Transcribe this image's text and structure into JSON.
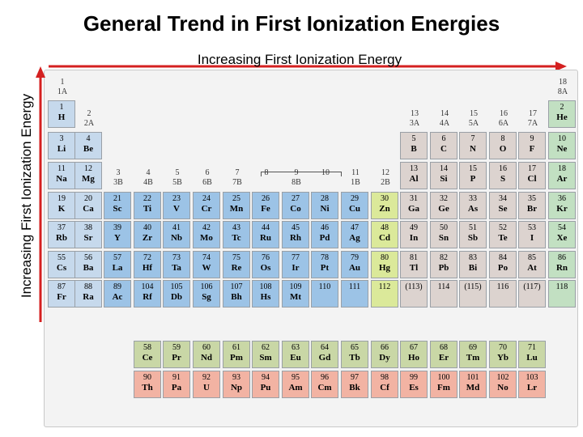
{
  "title": "General Trend in First Ionization Energies",
  "horizontal_label": "Increasing First Ionization Energy",
  "vertical_label": "Increasing First Ionization Energy",
  "colors": {
    "s_block": "#c6d9ec",
    "transition": "#9cc3e6",
    "zn_group": "#dbe99a",
    "p_block": "#dcd3cf",
    "noble": "#c2e0c2",
    "lanthanide": "#c9d7a6",
    "actinide": "#f2b3a3",
    "arrow": "#d42020"
  },
  "group_labels": [
    {
      "col": 1,
      "a": "1",
      "b": "1A"
    },
    {
      "col": 2,
      "a": "2",
      "b": "2A"
    },
    {
      "col": 3,
      "a": "3",
      "b": "3B"
    },
    {
      "col": 4,
      "a": "4",
      "b": "4B"
    },
    {
      "col": 5,
      "a": "5",
      "b": "5B"
    },
    {
      "col": 6,
      "a": "6",
      "b": "6B"
    },
    {
      "col": 7,
      "a": "7",
      "b": "7B"
    },
    {
      "col": 8,
      "a": "8",
      "b": ""
    },
    {
      "col": 9,
      "a": "9",
      "b": "8B"
    },
    {
      "col": 10,
      "a": "10",
      "b": ""
    },
    {
      "col": 11,
      "a": "11",
      "b": "1B"
    },
    {
      "col": 12,
      "a": "12",
      "b": "2B"
    },
    {
      "col": 13,
      "a": "13",
      "b": "3A"
    },
    {
      "col": 14,
      "a": "14",
      "b": "4A"
    },
    {
      "col": 15,
      "a": "15",
      "b": "5A"
    },
    {
      "col": 16,
      "a": "16",
      "b": "6A"
    },
    {
      "col": 17,
      "a": "17",
      "b": "7A"
    },
    {
      "col": 18,
      "a": "18",
      "b": "8A"
    }
  ],
  "elements": [
    {
      "n": "1",
      "s": "H",
      "r": 1,
      "c": 1,
      "b": "s"
    },
    {
      "n": "2",
      "s": "He",
      "r": 1,
      "c": 18,
      "b": "noble"
    },
    {
      "n": "3",
      "s": "Li",
      "r": 2,
      "c": 1,
      "b": "s"
    },
    {
      "n": "4",
      "s": "Be",
      "r": 2,
      "c": 2,
      "b": "s"
    },
    {
      "n": "5",
      "s": "B",
      "r": 2,
      "c": 13,
      "b": "p"
    },
    {
      "n": "6",
      "s": "C",
      "r": 2,
      "c": 14,
      "b": "p"
    },
    {
      "n": "7",
      "s": "N",
      "r": 2,
      "c": 15,
      "b": "p"
    },
    {
      "n": "8",
      "s": "O",
      "r": 2,
      "c": 16,
      "b": "p"
    },
    {
      "n": "9",
      "s": "F",
      "r": 2,
      "c": 17,
      "b": "p"
    },
    {
      "n": "10",
      "s": "Ne",
      "r": 2,
      "c": 18,
      "b": "noble"
    },
    {
      "n": "11",
      "s": "Na",
      "r": 3,
      "c": 1,
      "b": "s"
    },
    {
      "n": "12",
      "s": "Mg",
      "r": 3,
      "c": 2,
      "b": "s"
    },
    {
      "n": "13",
      "s": "Al",
      "r": 3,
      "c": 13,
      "b": "p"
    },
    {
      "n": "14",
      "s": "Si",
      "r": 3,
      "c": 14,
      "b": "p"
    },
    {
      "n": "15",
      "s": "P",
      "r": 3,
      "c": 15,
      "b": "p"
    },
    {
      "n": "16",
      "s": "S",
      "r": 3,
      "c": 16,
      "b": "p"
    },
    {
      "n": "17",
      "s": "Cl",
      "r": 3,
      "c": 17,
      "b": "p"
    },
    {
      "n": "18",
      "s": "Ar",
      "r": 3,
      "c": 18,
      "b": "noble"
    },
    {
      "n": "19",
      "s": "K",
      "r": 4,
      "c": 1,
      "b": "s"
    },
    {
      "n": "20",
      "s": "Ca",
      "r": 4,
      "c": 2,
      "b": "s"
    },
    {
      "n": "21",
      "s": "Sc",
      "r": 4,
      "c": 3,
      "b": "t"
    },
    {
      "n": "22",
      "s": "Ti",
      "r": 4,
      "c": 4,
      "b": "t"
    },
    {
      "n": "23",
      "s": "V",
      "r": 4,
      "c": 5,
      "b": "t"
    },
    {
      "n": "24",
      "s": "Cr",
      "r": 4,
      "c": 6,
      "b": "t"
    },
    {
      "n": "25",
      "s": "Mn",
      "r": 4,
      "c": 7,
      "b": "t"
    },
    {
      "n": "26",
      "s": "Fe",
      "r": 4,
      "c": 8,
      "b": "t"
    },
    {
      "n": "27",
      "s": "Co",
      "r": 4,
      "c": 9,
      "b": "t"
    },
    {
      "n": "28",
      "s": "Ni",
      "r": 4,
      "c": 10,
      "b": "t"
    },
    {
      "n": "29",
      "s": "Cu",
      "r": 4,
      "c": 11,
      "b": "t"
    },
    {
      "n": "30",
      "s": "Zn",
      "r": 4,
      "c": 12,
      "b": "zn"
    },
    {
      "n": "31",
      "s": "Ga",
      "r": 4,
      "c": 13,
      "b": "p"
    },
    {
      "n": "32",
      "s": "Ge",
      "r": 4,
      "c": 14,
      "b": "p"
    },
    {
      "n": "33",
      "s": "As",
      "r": 4,
      "c": 15,
      "b": "p"
    },
    {
      "n": "34",
      "s": "Se",
      "r": 4,
      "c": 16,
      "b": "p"
    },
    {
      "n": "35",
      "s": "Br",
      "r": 4,
      "c": 17,
      "b": "p"
    },
    {
      "n": "36",
      "s": "Kr",
      "r": 4,
      "c": 18,
      "b": "noble"
    },
    {
      "n": "37",
      "s": "Rb",
      "r": 5,
      "c": 1,
      "b": "s"
    },
    {
      "n": "38",
      "s": "Sr",
      "r": 5,
      "c": 2,
      "b": "s"
    },
    {
      "n": "39",
      "s": "Y",
      "r": 5,
      "c": 3,
      "b": "t"
    },
    {
      "n": "40",
      "s": "Zr",
      "r": 5,
      "c": 4,
      "b": "t"
    },
    {
      "n": "41",
      "s": "Nb",
      "r": 5,
      "c": 5,
      "b": "t"
    },
    {
      "n": "42",
      "s": "Mo",
      "r": 5,
      "c": 6,
      "b": "t"
    },
    {
      "n": "43",
      "s": "Tc",
      "r": 5,
      "c": 7,
      "b": "t"
    },
    {
      "n": "44",
      "s": "Ru",
      "r": 5,
      "c": 8,
      "b": "t"
    },
    {
      "n": "45",
      "s": "Rh",
      "r": 5,
      "c": 9,
      "b": "t"
    },
    {
      "n": "46",
      "s": "Pd",
      "r": 5,
      "c": 10,
      "b": "t"
    },
    {
      "n": "47",
      "s": "Ag",
      "r": 5,
      "c": 11,
      "b": "t"
    },
    {
      "n": "48",
      "s": "Cd",
      "r": 5,
      "c": 12,
      "b": "zn"
    },
    {
      "n": "49",
      "s": "In",
      "r": 5,
      "c": 13,
      "b": "p"
    },
    {
      "n": "50",
      "s": "Sn",
      "r": 5,
      "c": 14,
      "b": "p"
    },
    {
      "n": "51",
      "s": "Sb",
      "r": 5,
      "c": 15,
      "b": "p"
    },
    {
      "n": "52",
      "s": "Te",
      "r": 5,
      "c": 16,
      "b": "p"
    },
    {
      "n": "53",
      "s": "I",
      "r": 5,
      "c": 17,
      "b": "p"
    },
    {
      "n": "54",
      "s": "Xe",
      "r": 5,
      "c": 18,
      "b": "noble"
    },
    {
      "n": "55",
      "s": "Cs",
      "r": 6,
      "c": 1,
      "b": "s"
    },
    {
      "n": "56",
      "s": "Ba",
      "r": 6,
      "c": 2,
      "b": "s"
    },
    {
      "n": "57",
      "s": "La",
      "r": 6,
      "c": 3,
      "b": "t"
    },
    {
      "n": "72",
      "s": "Hf",
      "r": 6,
      "c": 4,
      "b": "t"
    },
    {
      "n": "73",
      "s": "Ta",
      "r": 6,
      "c": 5,
      "b": "t"
    },
    {
      "n": "74",
      "s": "W",
      "r": 6,
      "c": 6,
      "b": "t"
    },
    {
      "n": "75",
      "s": "Re",
      "r": 6,
      "c": 7,
      "b": "t"
    },
    {
      "n": "76",
      "s": "Os",
      "r": 6,
      "c": 8,
      "b": "t"
    },
    {
      "n": "77",
      "s": "Ir",
      "r": 6,
      "c": 9,
      "b": "t"
    },
    {
      "n": "78",
      "s": "Pt",
      "r": 6,
      "c": 10,
      "b": "t"
    },
    {
      "n": "79",
      "s": "Au",
      "r": 6,
      "c": 11,
      "b": "t"
    },
    {
      "n": "80",
      "s": "Hg",
      "r": 6,
      "c": 12,
      "b": "zn"
    },
    {
      "n": "81",
      "s": "Tl",
      "r": 6,
      "c": 13,
      "b": "p"
    },
    {
      "n": "82",
      "s": "Pb",
      "r": 6,
      "c": 14,
      "b": "p"
    },
    {
      "n": "83",
      "s": "Bi",
      "r": 6,
      "c": 15,
      "b": "p"
    },
    {
      "n": "84",
      "s": "Po",
      "r": 6,
      "c": 16,
      "b": "p"
    },
    {
      "n": "85",
      "s": "At",
      "r": 6,
      "c": 17,
      "b": "p"
    },
    {
      "n": "86",
      "s": "Rn",
      "r": 6,
      "c": 18,
      "b": "noble"
    },
    {
      "n": "87",
      "s": "Fr",
      "r": 7,
      "c": 1,
      "b": "s"
    },
    {
      "n": "88",
      "s": "Ra",
      "r": 7,
      "c": 2,
      "b": "s"
    },
    {
      "n": "89",
      "s": "Ac",
      "r": 7,
      "c": 3,
      "b": "t"
    },
    {
      "n": "104",
      "s": "Rf",
      "r": 7,
      "c": 4,
      "b": "t"
    },
    {
      "n": "105",
      "s": "Db",
      "r": 7,
      "c": 5,
      "b": "t"
    },
    {
      "n": "106",
      "s": "Sg",
      "r": 7,
      "c": 6,
      "b": "t"
    },
    {
      "n": "107",
      "s": "Bh",
      "r": 7,
      "c": 7,
      "b": "t"
    },
    {
      "n": "108",
      "s": "Hs",
      "r": 7,
      "c": 8,
      "b": "t"
    },
    {
      "n": "109",
      "s": "Mt",
      "r": 7,
      "c": 9,
      "b": "t"
    },
    {
      "n": "110",
      "s": "",
      "r": 7,
      "c": 10,
      "b": "t"
    },
    {
      "n": "111",
      "s": "",
      "r": 7,
      "c": 11,
      "b": "t"
    },
    {
      "n": "112",
      "s": "",
      "r": 7,
      "c": 12,
      "b": "zn"
    },
    {
      "n": "(113)",
      "s": "",
      "r": 7,
      "c": 13,
      "b": "p"
    },
    {
      "n": "114",
      "s": "",
      "r": 7,
      "c": 14,
      "b": "p"
    },
    {
      "n": "(115)",
      "s": "",
      "r": 7,
      "c": 15,
      "b": "p"
    },
    {
      "n": "116",
      "s": "",
      "r": 7,
      "c": 16,
      "b": "p"
    },
    {
      "n": "(117)",
      "s": "",
      "r": 7,
      "c": 17,
      "b": "p"
    },
    {
      "n": "118",
      "s": "",
      "r": 7,
      "c": 18,
      "b": "noble"
    },
    {
      "n": "58",
      "s": "Ce",
      "r": 8,
      "c": 4,
      "b": "la"
    },
    {
      "n": "59",
      "s": "Pr",
      "r": 8,
      "c": 5,
      "b": "la"
    },
    {
      "n": "60",
      "s": "Nd",
      "r": 8,
      "c": 6,
      "b": "la"
    },
    {
      "n": "61",
      "s": "Pm",
      "r": 8,
      "c": 7,
      "b": "la"
    },
    {
      "n": "62",
      "s": "Sm",
      "r": 8,
      "c": 8,
      "b": "la"
    },
    {
      "n": "63",
      "s": "Eu",
      "r": 8,
      "c": 9,
      "b": "la"
    },
    {
      "n": "64",
      "s": "Gd",
      "r": 8,
      "c": 10,
      "b": "la"
    },
    {
      "n": "65",
      "s": "Tb",
      "r": 8,
      "c": 11,
      "b": "la"
    },
    {
      "n": "66",
      "s": "Dy",
      "r": 8,
      "c": 12,
      "b": "la"
    },
    {
      "n": "67",
      "s": "Ho",
      "r": 8,
      "c": 13,
      "b": "la"
    },
    {
      "n": "68",
      "s": "Er",
      "r": 8,
      "c": 14,
      "b": "la"
    },
    {
      "n": "69",
      "s": "Tm",
      "r": 8,
      "c": 15,
      "b": "la"
    },
    {
      "n": "70",
      "s": "Yb",
      "r": 8,
      "c": 16,
      "b": "la"
    },
    {
      "n": "71",
      "s": "Lu",
      "r": 8,
      "c": 17,
      "b": "la"
    },
    {
      "n": "90",
      "s": "Th",
      "r": 9,
      "c": 4,
      "b": "ac"
    },
    {
      "n": "91",
      "s": "Pa",
      "r": 9,
      "c": 5,
      "b": "ac"
    },
    {
      "n": "92",
      "s": "U",
      "r": 9,
      "c": 6,
      "b": "ac"
    },
    {
      "n": "93",
      "s": "Np",
      "r": 9,
      "c": 7,
      "b": "ac"
    },
    {
      "n": "94",
      "s": "Pu",
      "r": 9,
      "c": 8,
      "b": "ac"
    },
    {
      "n": "95",
      "s": "Am",
      "r": 9,
      "c": 9,
      "b": "ac"
    },
    {
      "n": "96",
      "s": "Cm",
      "r": 9,
      "c": 10,
      "b": "ac"
    },
    {
      "n": "97",
      "s": "Bk",
      "r": 9,
      "c": 11,
      "b": "ac"
    },
    {
      "n": "98",
      "s": "Cf",
      "r": 9,
      "c": 12,
      "b": "ac"
    },
    {
      "n": "99",
      "s": "Es",
      "r": 9,
      "c": 13,
      "b": "ac"
    },
    {
      "n": "100",
      "s": "Fm",
      "r": 9,
      "c": 14,
      "b": "ac"
    },
    {
      "n": "101",
      "s": "Md",
      "r": 9,
      "c": 15,
      "b": "ac"
    },
    {
      "n": "102",
      "s": "No",
      "r": 9,
      "c": 16,
      "b": "ac"
    },
    {
      "n": "103",
      "s": "Lr",
      "r": 9,
      "c": 17,
      "b": "ac"
    }
  ]
}
